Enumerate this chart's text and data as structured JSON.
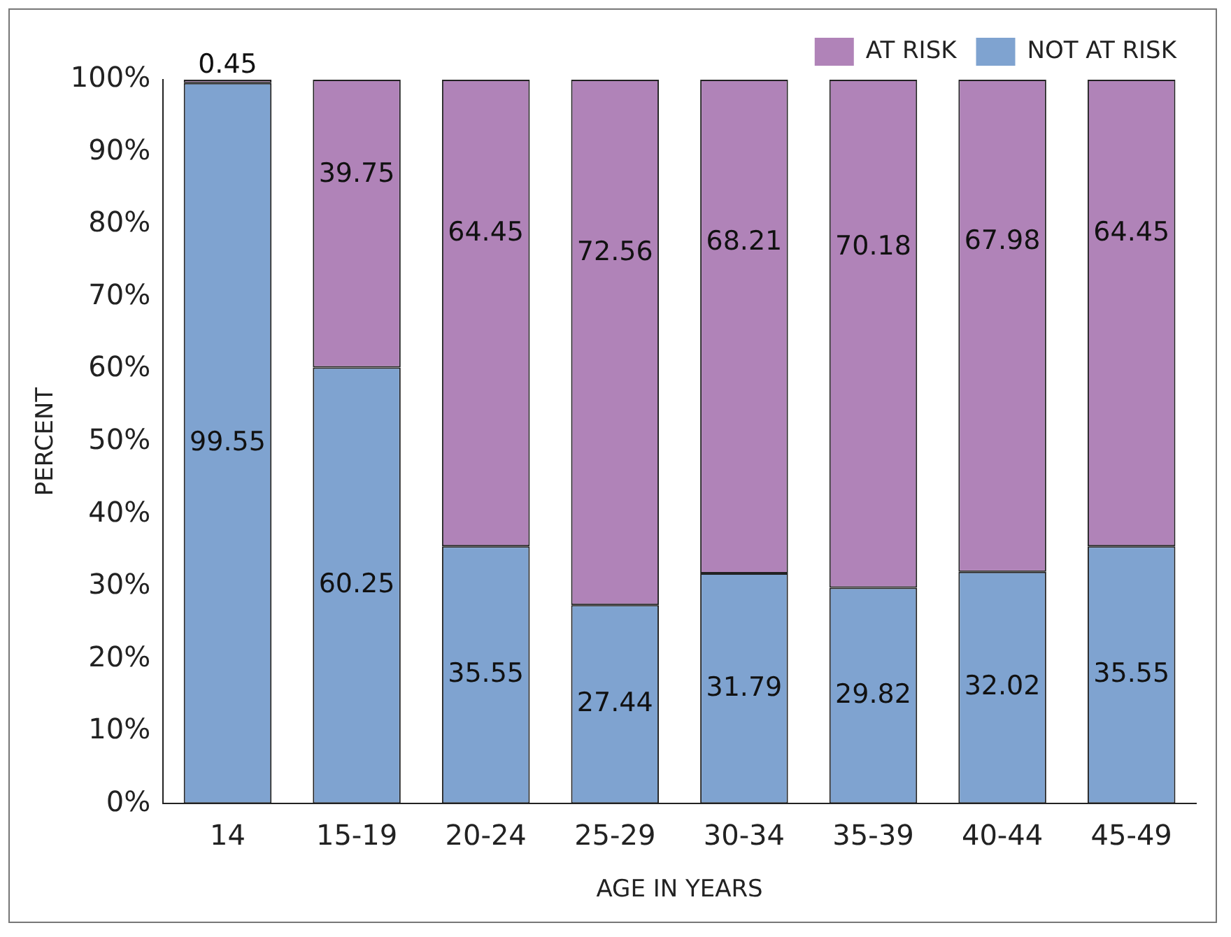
{
  "chart_data": {
    "type": "bar",
    "stacked": true,
    "xlabel": "AGE IN YEARS",
    "ylabel": "PERCENT",
    "categories": [
      "14",
      "15-19",
      "20-24",
      "25-29",
      "30-34",
      "35-39",
      "40-44",
      "45-49"
    ],
    "series": [
      {
        "name": "NOT AT RISK",
        "color": "#7fa3d0",
        "values": [
          99.55,
          60.25,
          35.55,
          27.44,
          31.79,
          29.82,
          32.02,
          35.55
        ]
      },
      {
        "name": "AT RISK",
        "color": "#b083b8",
        "values": [
          0.45,
          39.75,
          64.45,
          72.56,
          68.21,
          70.18,
          67.98,
          64.45
        ]
      }
    ],
    "ylim": [
      0,
      100
    ],
    "yticks": [
      {
        "value": 0,
        "label": "0%"
      },
      {
        "value": 10,
        "label": "10%"
      },
      {
        "value": 20,
        "label": "20%"
      },
      {
        "value": 30,
        "label": "30%"
      },
      {
        "value": 40,
        "label": "40%"
      },
      {
        "value": 50,
        "label": "50%"
      },
      {
        "value": 60,
        "label": "60%"
      },
      {
        "value": 70,
        "label": "70%"
      },
      {
        "value": 80,
        "label": "80%"
      },
      {
        "value": 90,
        "label": "90%"
      },
      {
        "value": 100,
        "label": "100%"
      }
    ],
    "grid": false,
    "legend": "top right",
    "data_labels": true
  }
}
